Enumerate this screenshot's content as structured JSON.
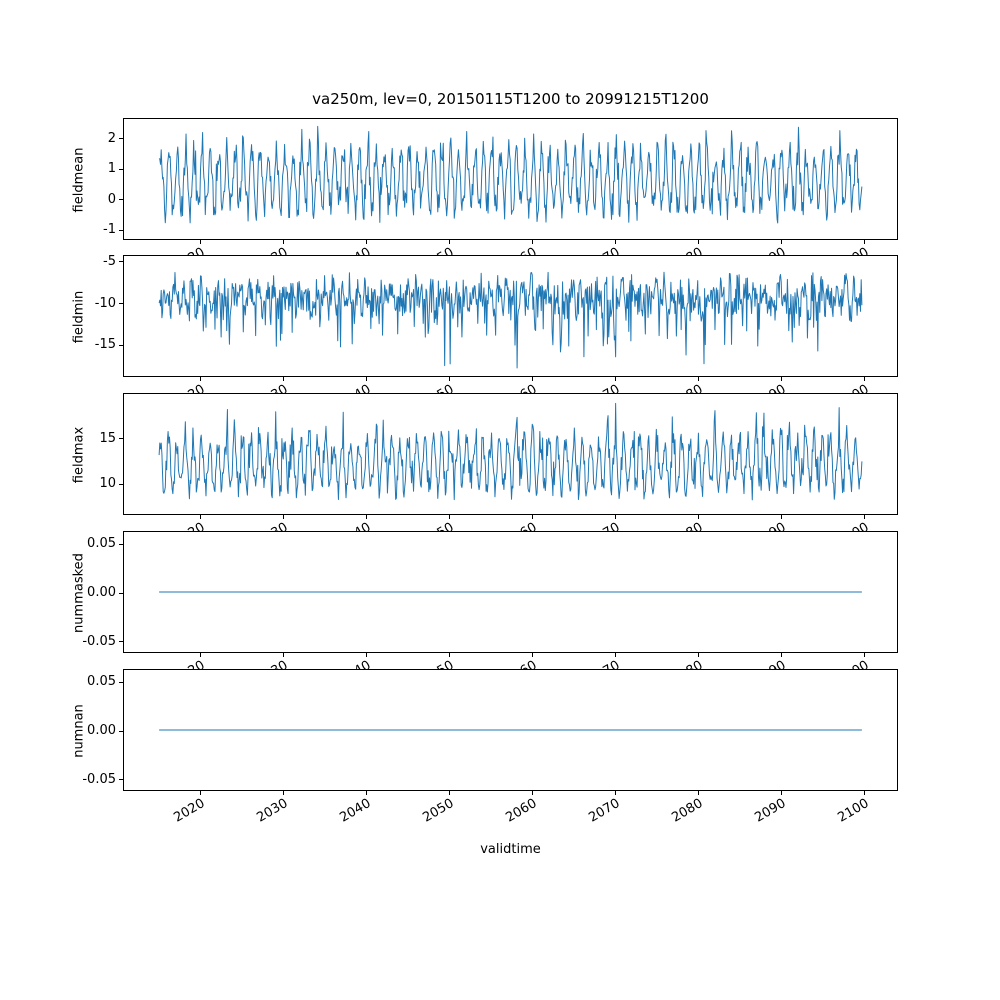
{
  "title": "va250m, lev=0, 20150115T1200 to 20991215T1200",
  "background": "#ffffff",
  "line_color": "#1f77b4",
  "seed": 20150115,
  "x_axis": {
    "label": "validtime",
    "xlim": [
      2010.8,
      2104.2
    ],
    "t_start": 2015.0417,
    "t_end": 2099.9583,
    "samples_per_year": 12,
    "ticks": [
      {
        "v": 2020,
        "label": "2020"
      },
      {
        "v": 2030,
        "label": "2030"
      },
      {
        "v": 2040,
        "label": "2040"
      },
      {
        "v": 2050,
        "label": "2050"
      },
      {
        "v": 2060,
        "label": "2060"
      },
      {
        "v": 2070,
        "label": "2070"
      },
      {
        "v": 2080,
        "label": "2080"
      },
      {
        "v": 2090,
        "label": "2090"
      },
      {
        "v": 2100,
        "label": "2100"
      }
    ]
  },
  "chart_data": [
    {
      "type": "line",
      "name": "fieldmean",
      "ylabel": "fieldmean",
      "yticks": [
        {
          "v": 2,
          "label": "2"
        },
        {
          "v": 1,
          "label": "1"
        },
        {
          "v": 0,
          "label": "0"
        },
        {
          "v": -1,
          "label": "-1"
        }
      ],
      "ylim": [
        -1.35,
        2.65
      ],
      "approx_value_range": [
        -1.1,
        2.45
      ],
      "pattern": "regular annual oscillation around ~0.5",
      "signal_model": {
        "base": 0.55,
        "seasonal_amp": 0.95,
        "phase": 0.0,
        "noise_amp": 0.45,
        "spike_amp": 0.7,
        "spike_pow": 8,
        "spike_sign": 1
      }
    },
    {
      "type": "line",
      "name": "fieldmin",
      "ylabel": "fieldmin",
      "yticks": [
        {
          "v": -5,
          "label": "-5"
        },
        {
          "v": -10,
          "label": "-10"
        },
        {
          "v": -15,
          "label": "-15"
        }
      ],
      "ylim": [
        -18.9,
        -4.3
      ],
      "approx_value_range": [
        -18.0,
        -5.2
      ],
      "pattern": "noisy band around -9 with sporadic deep negative spikes",
      "signal_model": {
        "base": -9.2,
        "seasonal_amp": 1.1,
        "phase": 0.25,
        "noise_amp": 1.9,
        "spike_amp": 7.5,
        "spike_pow": 12,
        "spike_sign": -1
      }
    },
    {
      "type": "line",
      "name": "fieldmax",
      "ylabel": "fieldmax",
      "yticks": [
        {
          "v": 15,
          "label": "15"
        },
        {
          "v": 10,
          "label": "10"
        }
      ],
      "ylim": [
        6.5,
        19.9
      ],
      "approx_value_range": [
        7.0,
        19.0
      ],
      "pattern": "annual oscillation around ~12 with occasional high peaks",
      "signal_model": {
        "base": 11.9,
        "seasonal_amp": 2.6,
        "phase": 0.08,
        "noise_amp": 1.3,
        "spike_amp": 3.5,
        "spike_pow": 10,
        "spike_sign": 1
      }
    },
    {
      "type": "line",
      "name": "nummasked",
      "ylabel": "nummasked",
      "yticks": [
        {
          "v": 0.05,
          "label": "0.05"
        },
        {
          "v": 0,
          "label": "0.00"
        },
        {
          "v": -0.05,
          "label": "-0.05"
        }
      ],
      "ylim": [
        -0.0625,
        0.0625
      ],
      "approx_value_range": [
        0,
        0
      ],
      "pattern": "constant zero",
      "signal_model": {
        "base": 0,
        "seasonal_amp": 0,
        "phase": 0,
        "noise_amp": 0,
        "spike_amp": 0,
        "spike_pow": 1,
        "spike_sign": 1
      }
    },
    {
      "type": "line",
      "name": "numnan",
      "ylabel": "numnan",
      "yticks": [
        {
          "v": 0.05,
          "label": "0.05"
        },
        {
          "v": 0,
          "label": "0.00"
        },
        {
          "v": -0.05,
          "label": "-0.05"
        }
      ],
      "ylim": [
        -0.0625,
        0.0625
      ],
      "approx_value_range": [
        0,
        0
      ],
      "pattern": "constant zero",
      "signal_model": {
        "base": 0,
        "seasonal_amp": 0,
        "phase": 0,
        "noise_amp": 0,
        "spike_amp": 0,
        "spike_pow": 1,
        "spike_sign": 1
      }
    }
  ]
}
